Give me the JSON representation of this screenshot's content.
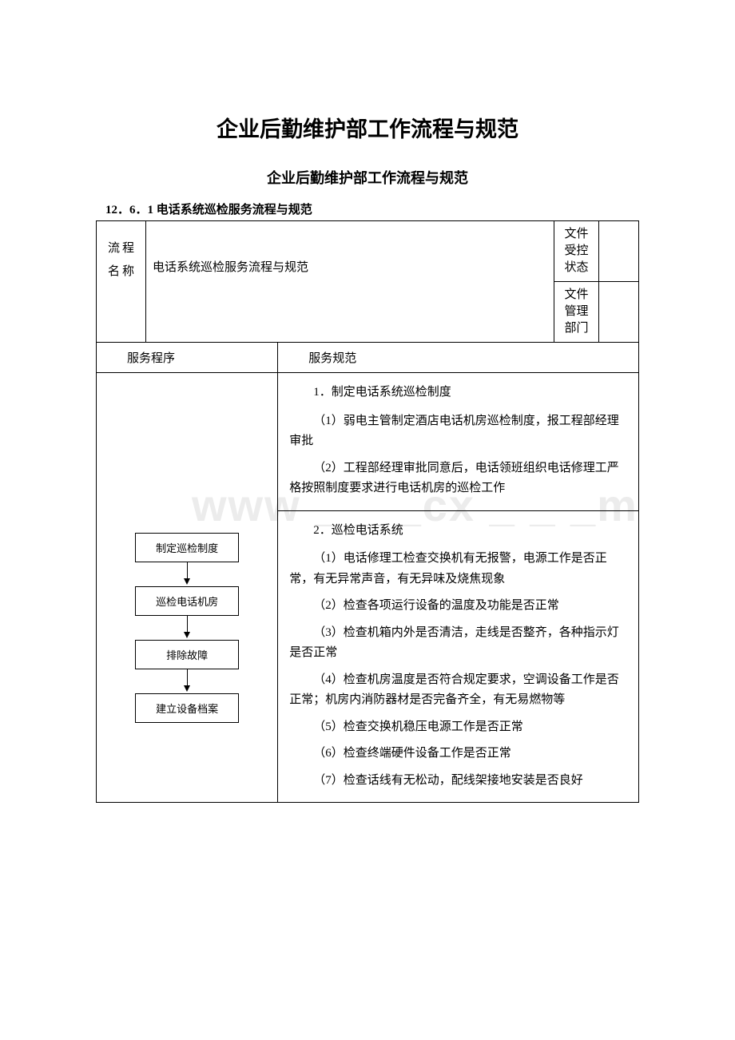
{
  "watermark_text": "www _ _ _cx _ _ _m",
  "title_main": "企业后勤维护部工作流程与规范",
  "title_sub": "企业后勤维护部工作流程与规范",
  "section_number": "12．6．1 电话系统巡检服务流程与规范",
  "header": {
    "proc_name_label": "流\n程\n名\n称",
    "proc_title": "电话系统巡检服务流程与规范",
    "doc_state_label": "文件受控状态",
    "doc_dept_label": "文件管理部门"
  },
  "col_headers": {
    "service_procedure": "服务程序",
    "service_spec": "服务规范"
  },
  "flow": {
    "nodes": [
      "制定巡检制度",
      "巡检电话机房",
      "排除故障",
      "建立设备档案"
    ]
  },
  "specs": [
    {
      "head": "1．制定电话系统巡检制度",
      "items": [
        "（1）弱电主管制定酒店电话机房巡检制度，报工程部经理审批",
        "（2）工程部经理审批同意后，电话领班组织电话修理工严格按照制度要求进行电话机房的巡检工作"
      ]
    },
    {
      "head": "2．巡检电话系统",
      "items": [
        "（1）电话修理工检查交换机有无报警，电源工作是否正常，有无异常声音，有无异味及烧焦现象",
        "（2）检查各项运行设备的温度及功能是否正常",
        "（3）检查机箱内外是否清洁，走线是否整齐，各种指示灯是否正常",
        "（4）检查机房温度是否符合规定要求，空调设备工作是否正常；机房内消防器材是否完备齐全，有无易燃物等",
        "（5）检查交换机稳压电源工作是否正常",
        "（6）检查终端硬件设备工作是否正常",
        "（7）检查话线有无松动，配线架接地安装是否良好"
      ]
    }
  ],
  "colors": {
    "text": "#000000",
    "border": "#000000",
    "background": "#ffffff",
    "watermark": "#ececec"
  },
  "typography": {
    "title_main_fontsize": 27,
    "title_sub_fontsize": 18,
    "section_fontsize": 15,
    "body_fontsize": 15,
    "flow_fontsize": 13
  }
}
